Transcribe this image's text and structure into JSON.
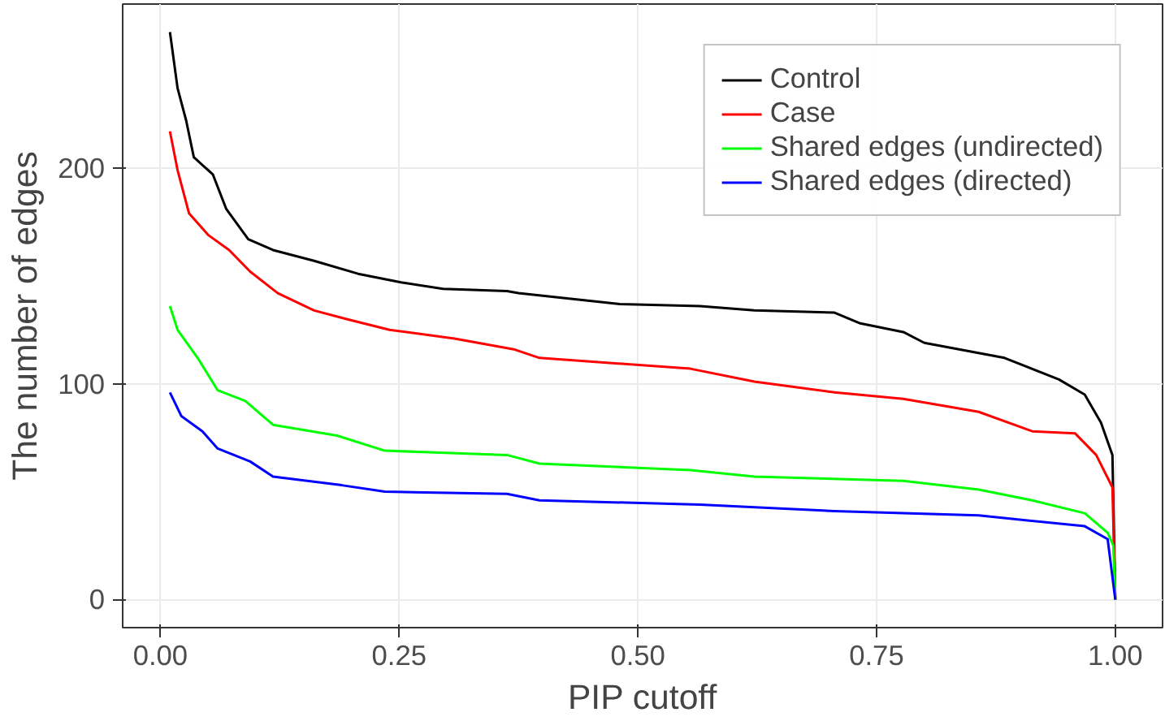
{
  "chart_data": {
    "type": "line",
    "xlabel": "PIP cutoff",
    "ylabel": "The number of edges",
    "xlim": [
      -0.0395,
      1.0495
    ],
    "ylim": [
      -13,
      276
    ],
    "xticks": [
      {
        "value": 0,
        "label": "0.00"
      },
      {
        "value": 0.25,
        "label": "0.25"
      },
      {
        "value": 0.5,
        "label": "0.50"
      },
      {
        "value": 0.75,
        "label": "0.75"
      },
      {
        "value": 1,
        "label": "1.00"
      }
    ],
    "yticks": [
      0,
      100,
      200
    ],
    "grid": true,
    "legend": "top right",
    "line_style": "solid",
    "marker": "none",
    "series": [
      {
        "name": "Control",
        "color": "#000000",
        "x": [
          0.01,
          0.018,
          0.027,
          0.035,
          0.055,
          0.069,
          0.092,
          0.118,
          0.161,
          0.207,
          0.252,
          0.296,
          0.363,
          0.375,
          0.481,
          0.565,
          0.622,
          0.706,
          0.733,
          0.778,
          0.8,
          0.884,
          0.941,
          0.968,
          0.985,
          0.997,
          1.0
        ],
        "values": [
          263,
          237,
          222,
          205,
          197,
          181,
          167,
          162,
          157,
          151,
          147,
          144,
          143,
          142,
          137,
          136,
          134,
          133,
          128,
          124,
          119,
          112,
          102,
          95,
          82,
          67,
          0
        ]
      },
      {
        "name": "Case",
        "color": "#ff0000",
        "x": [
          0.01,
          0.018,
          0.03,
          0.05,
          0.072,
          0.094,
          0.123,
          0.161,
          0.195,
          0.24,
          0.308,
          0.37,
          0.397,
          0.555,
          0.622,
          0.706,
          0.778,
          0.857,
          0.913,
          0.958,
          0.98,
          0.997,
          1.0
        ],
        "values": [
          217,
          199,
          179,
          169,
          162,
          152,
          142,
          134,
          130,
          125,
          121,
          116,
          112,
          107,
          101,
          96,
          93,
          87,
          78,
          77,
          67,
          52,
          0
        ]
      },
      {
        "name": "Shared edges (undirected)",
        "color": "#00ff00",
        "x": [
          0.01,
          0.018,
          0.039,
          0.06,
          0.089,
          0.118,
          0.185,
          0.235,
          0.363,
          0.397,
          0.555,
          0.622,
          0.778,
          0.857,
          0.913,
          0.968,
          0.992,
          0.998,
          1.0
        ],
        "values": [
          136,
          125,
          112,
          97,
          92,
          81,
          76,
          69,
          67,
          63,
          60,
          57,
          55,
          51,
          46,
          40,
          31,
          25,
          0
        ]
      },
      {
        "name": "Shared edges (directed)",
        "color": "#0000ff",
        "x": [
          0.01,
          0.022,
          0.044,
          0.06,
          0.094,
          0.118,
          0.19,
          0.235,
          0.363,
          0.397,
          0.565,
          0.706,
          0.857,
          0.968,
          0.992,
          1.0
        ],
        "values": [
          96,
          85,
          78,
          70,
          64,
          57,
          53,
          50,
          49,
          46,
          44,
          41,
          39,
          34,
          28,
          0
        ]
      }
    ]
  }
}
